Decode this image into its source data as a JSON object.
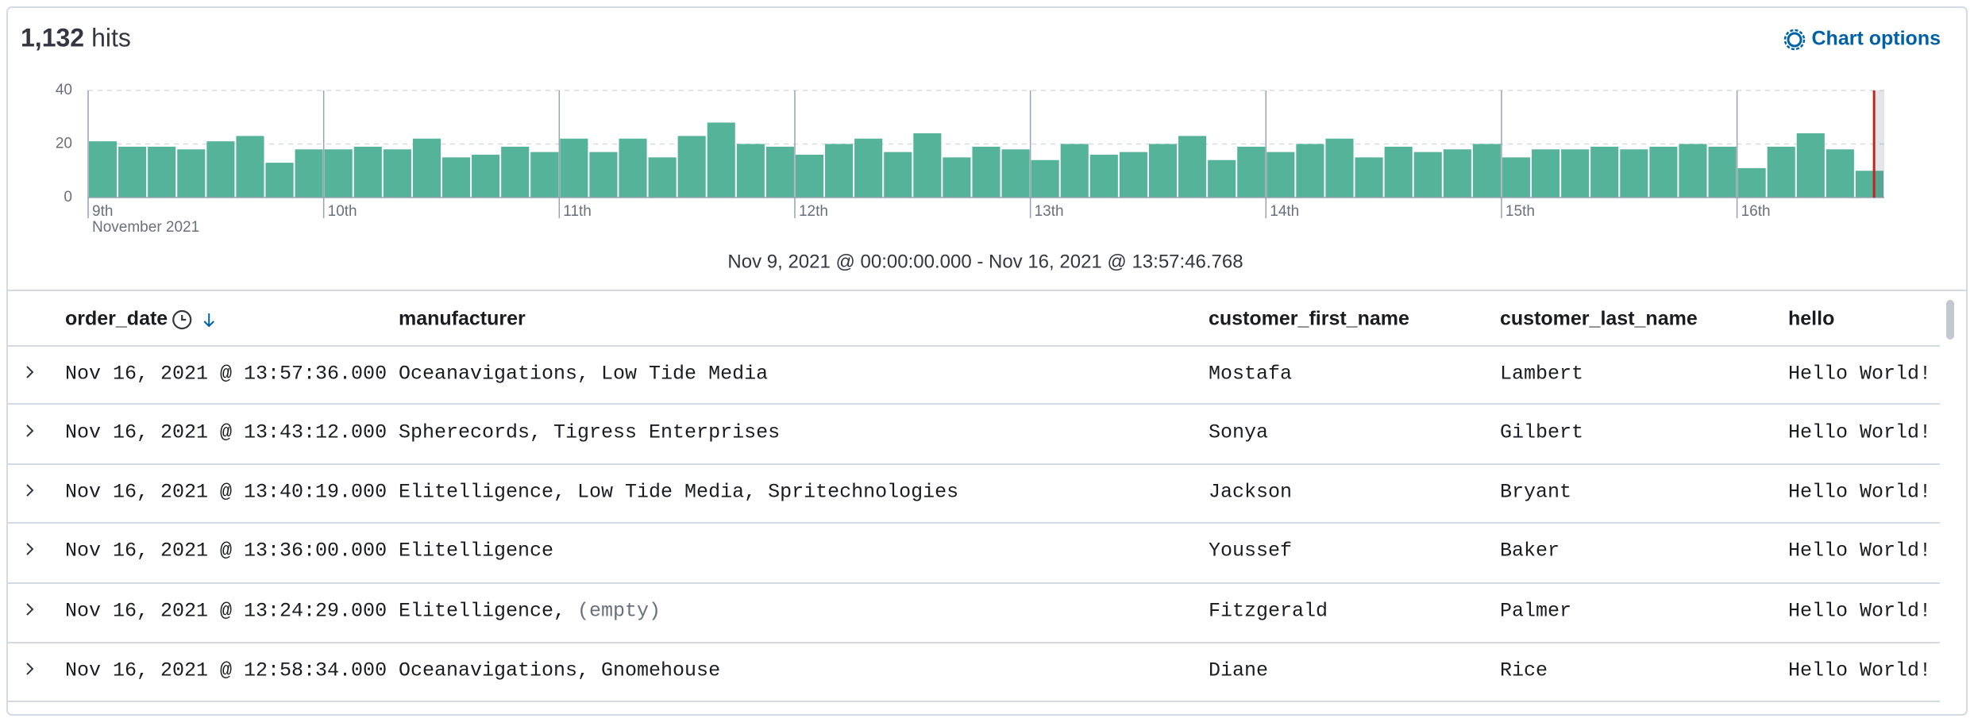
{
  "header": {
    "hit_count": "1,132",
    "hit_label": "hits",
    "chart_options": "Chart options"
  },
  "chart_data": {
    "type": "histogram",
    "bins": [
      0,
      3,
      6,
      9,
      12,
      15,
      18,
      21,
      24,
      27,
      30,
      33,
      36,
      39,
      42,
      45,
      48,
      51,
      54,
      57,
      60,
      63,
      66,
      69,
      72,
      75,
      78,
      81,
      84,
      87,
      90,
      93,
      96,
      99,
      102,
      105,
      108,
      111,
      114,
      117,
      120,
      123,
      126,
      129,
      132,
      135,
      138,
      141,
      144,
      147,
      150,
      153,
      156,
      159,
      162,
      165,
      168,
      171,
      174,
      177,
      180,
      183
    ],
    "values": [
      21,
      19,
      19,
      18,
      21,
      23,
      13,
      18,
      18,
      19,
      18,
      22,
      15,
      16,
      19,
      17,
      22,
      17,
      22,
      15,
      23,
      28,
      20,
      19,
      16,
      20,
      22,
      17,
      24,
      15,
      19,
      18,
      14,
      20,
      16,
      17,
      20,
      23,
      14,
      19,
      17,
      20,
      22,
      15,
      19,
      17,
      18,
      20,
      15,
      18,
      18,
      19,
      18,
      19,
      20,
      19,
      11,
      19,
      24,
      18,
      10
    ],
    "color": "#54b399",
    "xlim": [
      0,
      183
    ],
    "xticks": [
      {
        "value": 0,
        "label": "9th"
      },
      {
        "value": 24,
        "label": "10th"
      },
      {
        "value": 48,
        "label": "11th"
      },
      {
        "value": 72,
        "label": "12th"
      },
      {
        "value": 96,
        "label": "13th"
      },
      {
        "value": 120,
        "label": "14th"
      },
      {
        "value": 144,
        "label": "15th"
      },
      {
        "value": 168,
        "label": "16th"
      }
    ],
    "x_sublabel": "November 2021",
    "ylim": [
      0,
      40
    ],
    "yticks": [
      0,
      20,
      40
    ],
    "grid": true,
    "now_line": {
      "x": 181.96,
      "color": "#bd271e"
    },
    "time_range": "Nov 9, 2021 @ 00:00:00.000 - Nov 16, 2021 @ 13:57:46.768"
  },
  "table": {
    "columns": [
      "order_date",
      "manufacturer",
      "customer_first_name",
      "customer_last_name",
      "hello"
    ],
    "rows": [
      {
        "order_date": "Nov 16, 2021 @ 13:57:36.000",
        "manufacturer": "Oceanavigations, Low Tide Media",
        "customer_first_name": "Mostafa",
        "customer_last_name": "Lambert",
        "hello": "Hello World!"
      },
      {
        "order_date": "Nov 16, 2021 @ 13:43:12.000",
        "manufacturer": "Spherecords, Tigress Enterprises",
        "customer_first_name": "Sonya",
        "customer_last_name": "Gilbert",
        "hello": "Hello World!"
      },
      {
        "order_date": "Nov 16, 2021 @ 13:40:19.000",
        "manufacturer": "Elitelligence, Low Tide Media, Spritechnologies",
        "customer_first_name": "Jackson",
        "customer_last_name": "Bryant",
        "hello": "Hello World!"
      },
      {
        "order_date": "Nov 16, 2021 @ 13:36:00.000",
        "manufacturer": "Elitelligence",
        "customer_first_name": "Youssef",
        "customer_last_name": "Baker",
        "hello": "Hello World!"
      },
      {
        "order_date": "Nov 16, 2021 @ 13:24:29.000",
        "manufacturer": "Elitelligence,",
        "manufacturer_empty": "(empty)",
        "customer_first_name": "Fitzgerald",
        "customer_last_name": "Palmer",
        "hello": "Hello World!"
      },
      {
        "order_date": "Nov 16, 2021 @ 12:58:34.000",
        "manufacturer": "Oceanavigations, Gnomehouse",
        "customer_first_name": "Diane",
        "customer_last_name": "Rice",
        "hello": "Hello World!"
      }
    ]
  }
}
